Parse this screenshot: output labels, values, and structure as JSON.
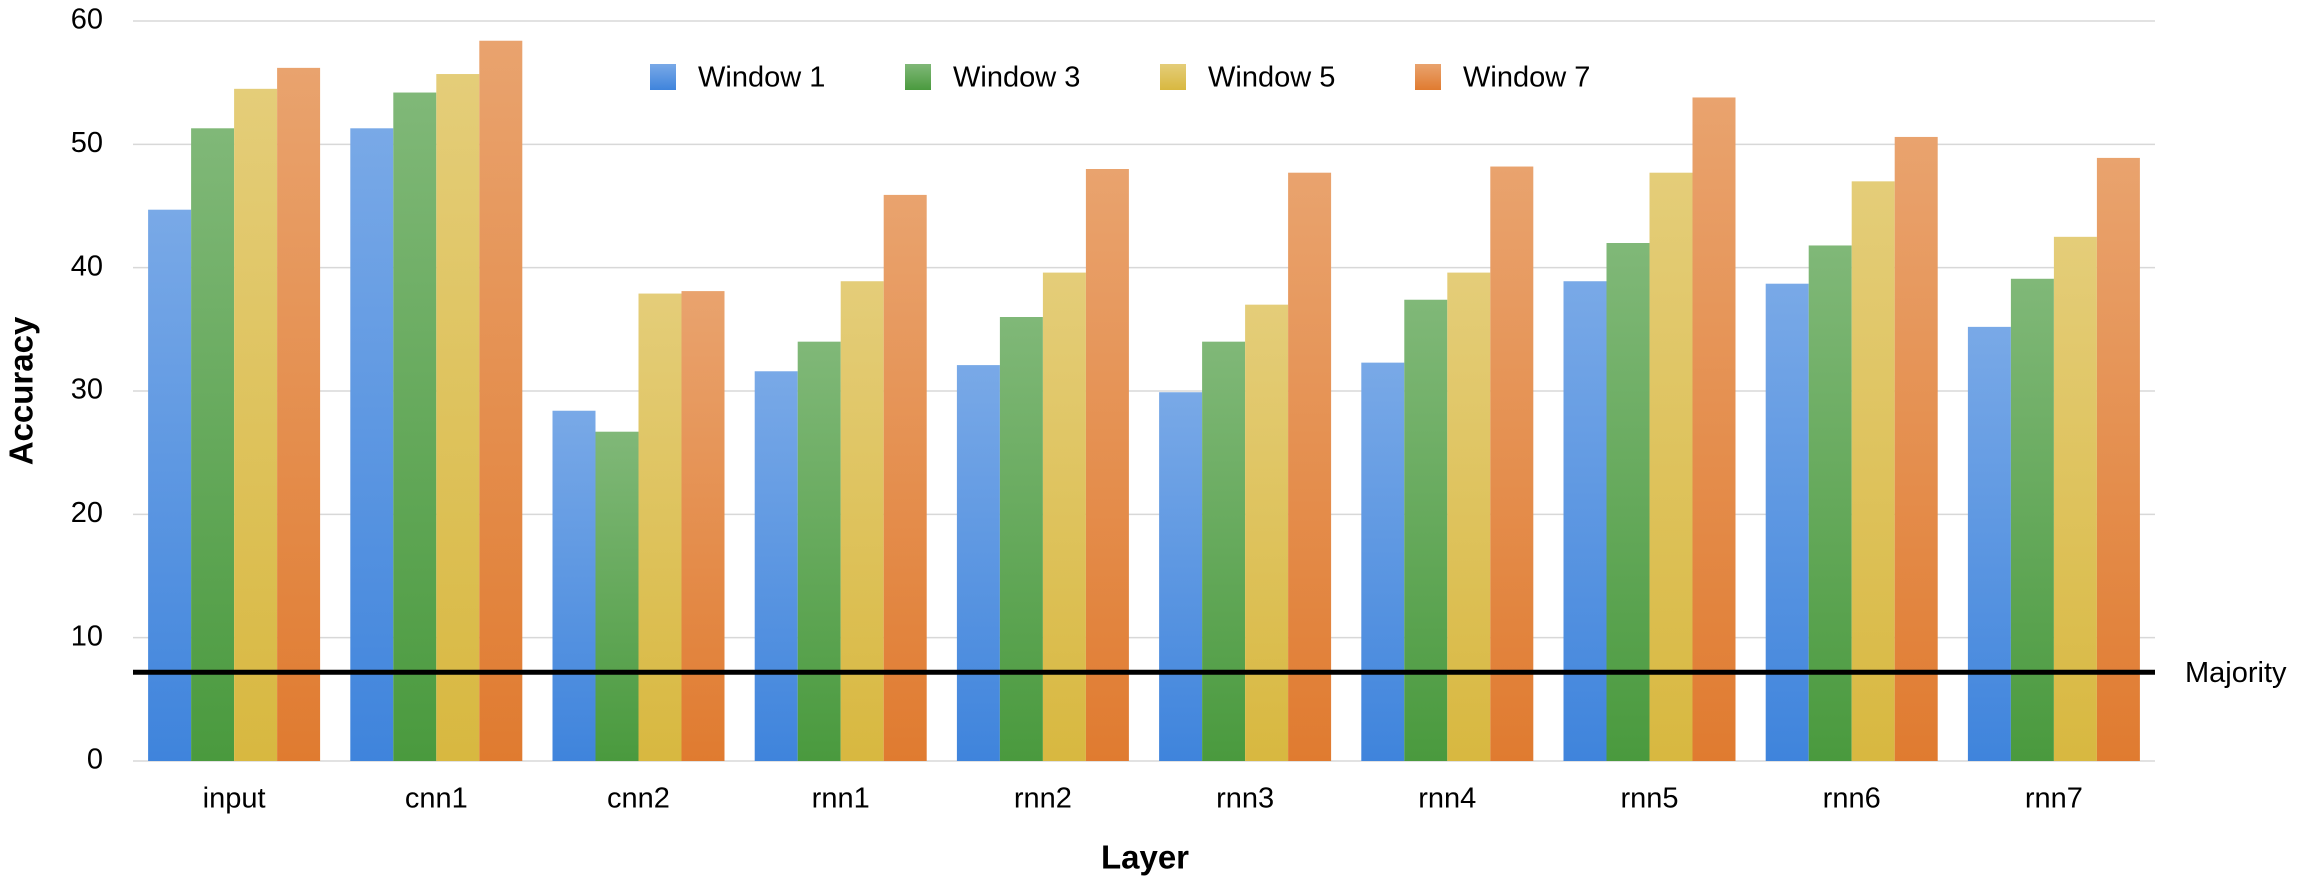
{
  "chart_data": {
    "type": "bar",
    "x_label": "Layer",
    "y_label": "Accuracy",
    "categories": [
      "input",
      "cnn1",
      "cnn2",
      "rnn1",
      "rnn2",
      "rnn3",
      "rnn4",
      "rnn5",
      "rnn6",
      "rnn7"
    ],
    "series": [
      {
        "name": "Window 1",
        "color": "#3f84dc",
        "values": [
          44.7,
          51.3,
          28.4,
          31.6,
          32.1,
          29.9,
          32.3,
          38.9,
          38.7,
          35.2
        ]
      },
      {
        "name": "Window 3",
        "color": "#4a9a3e",
        "values": [
          51.3,
          54.2,
          26.7,
          34.0,
          36.0,
          34.0,
          37.4,
          42.0,
          41.8,
          39.1
        ]
      },
      {
        "name": "Window 5",
        "color": "#d8b840",
        "values": [
          54.5,
          55.7,
          37.9,
          38.9,
          39.6,
          37.0,
          39.6,
          47.7,
          47.0,
          42.5
        ]
      },
      {
        "name": "Window 7",
        "color": "#e07b30",
        "values": [
          56.2,
          58.4,
          38.1,
          45.9,
          48.0,
          47.7,
          48.2,
          53.8,
          50.6,
          48.9
        ]
      }
    ],
    "reference_line": {
      "label": "Majority",
      "value": 7.2
    },
    "ylim": [
      0,
      60
    ],
    "yticks": [
      0,
      10,
      20,
      30,
      40,
      50,
      60
    ],
    "grid": true,
    "legend": "top"
  }
}
